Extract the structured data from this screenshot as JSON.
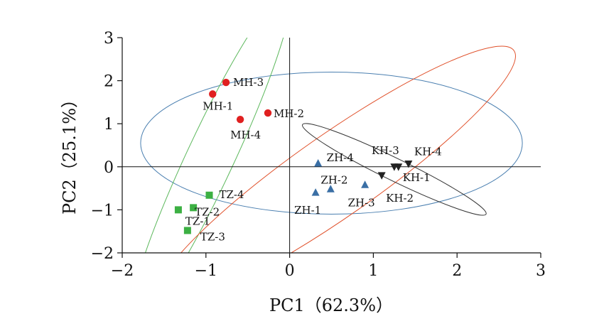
{
  "chart_data": {
    "type": "scatter",
    "title": "",
    "xlabel": "PC1（62.3%）",
    "ylabel": "PC2（25.1%）",
    "xlim": [
      -2,
      3
    ],
    "ylim": [
      -2,
      3
    ],
    "xticks": [
      -2,
      -1,
      0,
      1,
      2,
      3
    ],
    "yticks": [
      -2,
      -1,
      0,
      1,
      2,
      3
    ],
    "xtick_labels": [
      "−2",
      "−1",
      "0",
      "1",
      "2",
      "3"
    ],
    "ytick_labels": [
      "−2",
      "−1",
      "0",
      "1",
      "2",
      "3"
    ],
    "grid": false,
    "legend": "none",
    "series": [
      {
        "marker": "circle",
        "color": "#e02020",
        "points": [
          {
            "label": "MH-3",
            "x": -0.76,
            "y": 1.96
          },
          {
            "label": "MH-1",
            "x": -0.92,
            "y": 1.69
          },
          {
            "label": "MH-2",
            "x": -0.26,
            "y": 1.25
          },
          {
            "label": "MH-4",
            "x": -0.59,
            "y": 1.1
          }
        ]
      },
      {
        "marker": "triangle-up",
        "color": "#3a6fa5",
        "points": [
          {
            "label": "ZH-4",
            "x": 0.34,
            "y": 0.08
          },
          {
            "label": "ZH-2",
            "x": 0.49,
            "y": -0.52
          },
          {
            "label": "ZH-1",
            "x": 0.31,
            "y": -0.6
          },
          {
            "label": "ZH-3",
            "x": 0.9,
            "y": -0.42
          }
        ]
      },
      {
        "marker": "triangle-down",
        "color": "#222222",
        "points": [
          {
            "label": "KH-3",
            "x": 1.25,
            "y": 0.0
          },
          {
            "label": "KH-4",
            "x": 1.42,
            "y": 0.07
          },
          {
            "label": "KH-1",
            "x": 1.3,
            "y": 0.0
          },
          {
            "label": "KH-2",
            "x": 1.1,
            "y": -0.2
          }
        ]
      },
      {
        "marker": "square",
        "color": "#3cb043",
        "points": [
          {
            "label": "TZ-4",
            "x": -0.96,
            "y": -0.66
          },
          {
            "label": "TZ-2",
            "x": -1.15,
            "y": -0.95
          },
          {
            "label": "TZ-1",
            "x": -1.33,
            "y": -1.0
          },
          {
            "label": "TZ-3",
            "x": -1.22,
            "y": -1.48
          }
        ]
      }
    ],
    "ellipses": [
      {
        "group": "MH",
        "color": "#4a7fb0",
        "cx": 0.5,
        "cy": 0.55,
        "rx": 2.28,
        "ry": 1.65,
        "angle_deg": 0
      },
      {
        "group": "TZ",
        "color": "#5cb85c",
        "cx": -0.95,
        "cy": 0.2,
        "rx": 2.2,
        "ry": 0.55,
        "angle_deg": -65
      },
      {
        "group": "ZH",
        "color": "#e0502a",
        "cx": 0.55,
        "cy": -0.2,
        "rx": 2.6,
        "ry": 0.95,
        "angle_deg": -35
      },
      {
        "group": "KH",
        "color": "#333333",
        "cx": 1.25,
        "cy": -0.06,
        "rx": 1.22,
        "ry": 0.26,
        "angle_deg": 26
      }
    ]
  }
}
